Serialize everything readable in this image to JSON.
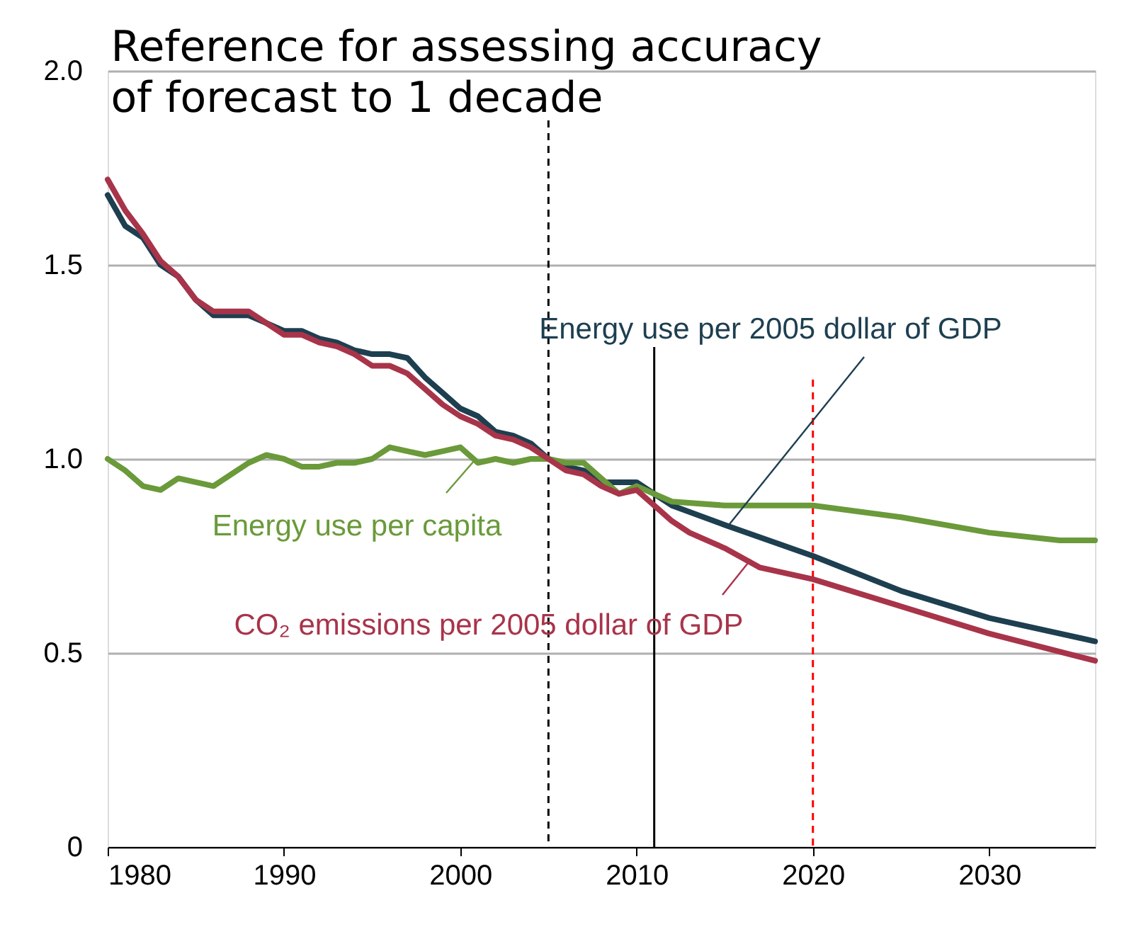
{
  "chart_data": {
    "type": "line",
    "title": [
      "Reference for assessing accuracy",
      "of forecast to 1 decade"
    ],
    "xlim": [
      1980,
      2036
    ],
    "xticks": [
      1980,
      1990,
      2000,
      2010,
      2020,
      2030
    ],
    "ylim": [
      0,
      2.0
    ],
    "yticks": [
      0,
      0.5,
      {
        "value": 1.0,
        "label": "1.0"
      },
      {
        "value": 1.5,
        "label": "1.5"
      },
      {
        "value": 2.0,
        "label": "2.0"
      }
    ],
    "grid": "y",
    "legend": "left",
    "marker": "none",
    "line_style": "solid",
    "series": [
      {
        "name": "Energy use per 2005 dollar of GDP",
        "color": "#1d3f50",
        "x": [
          1980,
          1981,
          1982,
          1983,
          1984,
          1985,
          1986,
          1987,
          1988,
          1989,
          1990,
          1991,
          1992,
          1993,
          1994,
          1995,
          1996,
          1997,
          1998,
          1999,
          2000,
          2001,
          2002,
          2003,
          2004,
          2005,
          2006,
          2007,
          2008,
          2009,
          2010,
          2011,
          2012,
          2015,
          2020,
          2025,
          2030,
          2036
        ],
        "values": [
          1.68,
          1.6,
          1.57,
          1.5,
          1.47,
          1.41,
          1.37,
          1.37,
          1.37,
          1.35,
          1.33,
          1.33,
          1.31,
          1.3,
          1.28,
          1.27,
          1.27,
          1.26,
          1.21,
          1.17,
          1.13,
          1.11,
          1.07,
          1.06,
          1.04,
          1.0,
          0.98,
          0.97,
          0.94,
          0.94,
          0.94,
          0.91,
          0.88,
          0.83,
          0.75,
          0.66,
          0.59,
          0.53
        ]
      },
      {
        "name": "Energy use per capita",
        "color": "#6a9a3a",
        "x": [
          1980,
          1981,
          1982,
          1983,
          1984,
          1985,
          1986,
          1987,
          1988,
          1989,
          1990,
          1991,
          1992,
          1993,
          1994,
          1995,
          1996,
          1997,
          1998,
          1999,
          2000,
          2001,
          2002,
          2003,
          2004,
          2005,
          2006,
          2007,
          2008,
          2009,
          2010,
          2011,
          2012,
          2015,
          2020,
          2025,
          2030,
          2034,
          2036
        ],
        "values": [
          1.0,
          0.97,
          0.93,
          0.92,
          0.95,
          0.94,
          0.93,
          0.96,
          0.99,
          1.01,
          1.0,
          0.98,
          0.98,
          0.99,
          0.99,
          1.0,
          1.03,
          1.02,
          1.01,
          1.02,
          1.03,
          0.99,
          1.0,
          0.99,
          1.0,
          1.0,
          0.99,
          0.99,
          0.95,
          0.91,
          0.93,
          0.91,
          0.89,
          0.88,
          0.88,
          0.85,
          0.81,
          0.79,
          0.79
        ]
      },
      {
        "name": "CO₂ emissions per 2005 dollar of GDP",
        "color": "#a8344a",
        "x": [
          1980,
          1981,
          1982,
          1983,
          1984,
          1985,
          1986,
          1987,
          1988,
          1989,
          1990,
          1991,
          1992,
          1993,
          1994,
          1995,
          1996,
          1997,
          1998,
          1999,
          2000,
          2001,
          2002,
          2003,
          2004,
          2005,
          2006,
          2007,
          2008,
          2009,
          2010,
          2011,
          2012,
          2013,
          2015,
          2017,
          2020,
          2025,
          2030,
          2036
        ],
        "values": [
          1.72,
          1.64,
          1.58,
          1.51,
          1.47,
          1.41,
          1.38,
          1.38,
          1.38,
          1.35,
          1.32,
          1.32,
          1.3,
          1.29,
          1.27,
          1.24,
          1.24,
          1.22,
          1.18,
          1.14,
          1.11,
          1.09,
          1.06,
          1.05,
          1.03,
          1.0,
          0.97,
          0.96,
          0.93,
          0.91,
          0.92,
          0.88,
          0.84,
          0.81,
          0.77,
          0.72,
          0.69,
          0.62,
          0.55,
          0.48
        ]
      }
    ],
    "ref_lines": [
      {
        "axis": "x",
        "value": 2005,
        "color": "#000000",
        "line_style": "dashed"
      },
      {
        "axis": "x",
        "value": 2011,
        "color": "#000000",
        "line_style": "solid"
      },
      {
        "axis": "x",
        "value": 2020,
        "color": "#ff0000",
        "line_style": "dashed"
      }
    ]
  }
}
